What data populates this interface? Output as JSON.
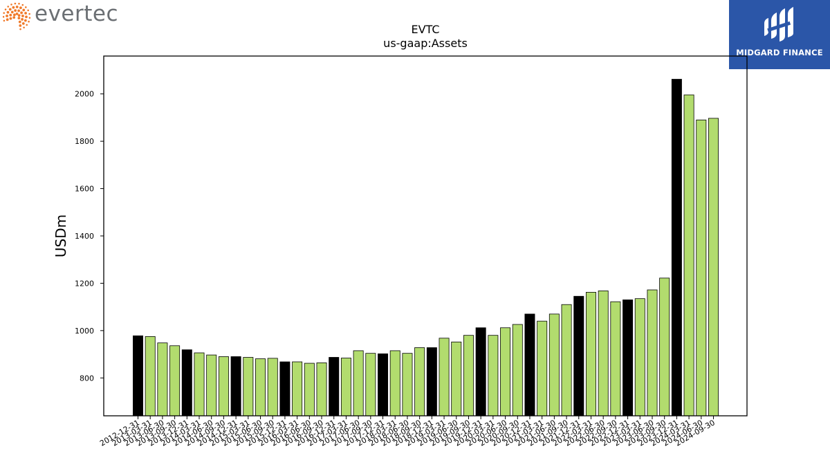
{
  "logos": {
    "evertec": "evertec",
    "midgard": "MIDGARD FINANCE"
  },
  "colors": {
    "fy_bar": "#000000",
    "quarter_bar": "#b2dc6e",
    "evertec_dots": "#f07a2a",
    "midgard_bg": "#2b56a8"
  },
  "chart_data": {
    "type": "bar",
    "title": "EVTC",
    "subtitle": "us-gaap:Assets",
    "xlabel": "",
    "ylabel": "USDm",
    "ylim": [
      640,
      2160
    ],
    "yticks": [
      800,
      1000,
      1200,
      1400,
      1600,
      1800,
      2000
    ],
    "grid": false,
    "categories": [
      "2012-12-31",
      "2013-03-31",
      "2013-06-30",
      "2013-09-30",
      "2013-12-31",
      "2014-03-31",
      "2014-06-30",
      "2014-09-30",
      "2014-12-31",
      "2015-03-31",
      "2015-06-30",
      "2015-09-30",
      "2015-12-31",
      "2016-03-31",
      "2016-06-30",
      "2016-09-30",
      "2016-12-31",
      "2017-03-31",
      "2017-06-30",
      "2017-09-30",
      "2017-12-31",
      "2018-03-31",
      "2018-06-30",
      "2018-09-30",
      "2018-12-31",
      "2019-03-31",
      "2019-06-30",
      "2019-09-30",
      "2019-12-31",
      "2020-03-31",
      "2020-06-30",
      "2020-09-30",
      "2020-12-31",
      "2021-03-31",
      "2021-06-30",
      "2021-09-30",
      "2021-12-31",
      "2022-03-31",
      "2022-06-30",
      "2022-09-30",
      "2022-12-31",
      "2023-03-31",
      "2023-06-30",
      "2023-09-30",
      "2023-12-31",
      "2024-03-31",
      "2024-06-30",
      "2024-09-30"
    ],
    "values": [
      978,
      975,
      948,
      936,
      919,
      906,
      897,
      890,
      890,
      887,
      881,
      883,
      868,
      868,
      862,
      864,
      887,
      884,
      915,
      904,
      902,
      915,
      904,
      928,
      928,
      968,
      952,
      980,
      1012,
      980,
      1012,
      1026,
      1070,
      1040,
      1070,
      1110,
      1145,
      1162,
      1168,
      1122,
      1130,
      1135,
      1172,
      1222,
      2062,
      1996,
      1890,
      1897
    ],
    "fiscal_year_end": [
      true,
      false,
      false,
      false,
      true,
      false,
      false,
      false,
      true,
      false,
      false,
      false,
      true,
      false,
      false,
      false,
      true,
      false,
      false,
      false,
      true,
      false,
      false,
      false,
      true,
      false,
      false,
      false,
      true,
      false,
      false,
      false,
      true,
      false,
      false,
      false,
      true,
      false,
      false,
      false,
      true,
      false,
      false,
      false,
      true,
      false,
      false,
      false
    ]
  }
}
